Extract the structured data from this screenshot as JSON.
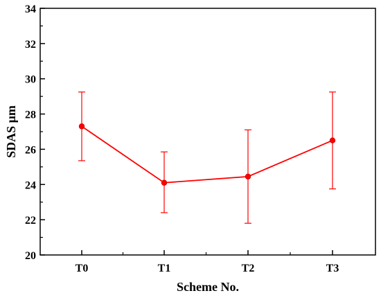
{
  "chart_data": {
    "type": "line",
    "title": "",
    "xlabel": "Scheme No.",
    "ylabel": "SDAS μm",
    "categories": [
      "T0",
      "T1",
      "T2",
      "T3"
    ],
    "ylim": [
      20,
      34
    ],
    "yticks": [
      20,
      22,
      24,
      26,
      28,
      30,
      32,
      34
    ],
    "grid": false,
    "series": [
      {
        "values": [
          27.3,
          24.1,
          24.45,
          26.5
        ],
        "error_low": [
          25.35,
          22.4,
          21.8,
          23.75
        ],
        "error_high": [
          29.25,
          25.85,
          27.1,
          29.25
        ],
        "color": "#ff0000"
      }
    ]
  }
}
